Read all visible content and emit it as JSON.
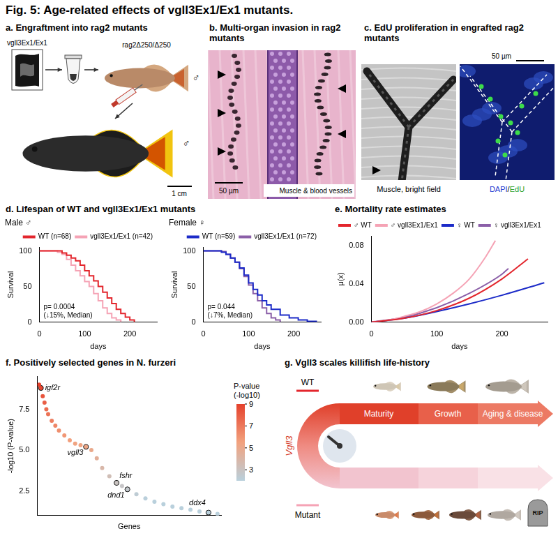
{
  "title": "Fig. 5: Age-related effects of vgll3Ex1/Ex1 mutants.",
  "panels": {
    "a": {
      "title": "a. Engraftment into rag2 mutants",
      "donor_label": "vgll3Ex1/Ex1",
      "host_label": "rag2Δ250/Δ250",
      "host_sex": "♂",
      "result_sex": "♂",
      "scale_bar": "1 cm"
    },
    "b": {
      "title": "b. Multi-organ invasion in rag2 mutants",
      "scale_bar": "50 µm",
      "caption": "Muscle & blood vessels"
    },
    "c": {
      "title": "c. EdU proliferation in engrafted rag2 mutants",
      "scale_bar": "50 µm",
      "captions": [
        "Muscle, bright field",
        "DAPI/EdU"
      ]
    },
    "d": {
      "title": "d. Lifespan of WT and vgll3Ex1/Ex1 mutants"
    },
    "e": {
      "title": "e. Mortality rate estimates"
    },
    "f": {
      "title": "f. Positively selected genes in N. furzeri"
    },
    "g": {
      "title": "g. Vgll3 scales killifish life-history",
      "top_label": "WT",
      "stages": [
        "Maturity",
        "Growth",
        "Aging & disease"
      ],
      "gene": "Vgll3",
      "bottom_label": "Mutant",
      "end_label": "RIP"
    }
  },
  "chart_data": [
    {
      "type": "line",
      "title": "Male ♂",
      "xlabel": "days",
      "ylabel": "Survival",
      "xlim": [
        0,
        260
      ],
      "xticks": [
        0,
        100,
        200
      ],
      "ylim": [
        0,
        105
      ],
      "yticks": [
        0,
        50,
        100
      ],
      "grid": false,
      "legend": "top",
      "line_style": "step",
      "annotation": [
        "p= 0.0004",
        "(↓15%, Median)"
      ],
      "series": [
        {
          "name": "WT (n=68)",
          "color": "#e3262d",
          "x": [
            0,
            40,
            50,
            60,
            70,
            80,
            90,
            100,
            110,
            120,
            130,
            140,
            150,
            160,
            170,
            180,
            190,
            200,
            210
          ],
          "values": [
            100,
            100,
            97,
            94,
            90,
            86,
            80,
            72,
            65,
            58,
            50,
            42,
            34,
            26,
            18,
            12,
            7,
            3,
            0
          ]
        },
        {
          "name": "vgll3Ex1/Ex1 (n=42)",
          "color": "#f5a3b5",
          "x": [
            0,
            40,
            50,
            60,
            70,
            80,
            90,
            100,
            110,
            120,
            130,
            140,
            150,
            160,
            170,
            180
          ],
          "values": [
            100,
            98,
            95,
            88,
            80,
            72,
            65,
            57,
            50,
            40,
            30,
            20,
            12,
            6,
            3,
            0
          ]
        }
      ]
    },
    {
      "type": "line",
      "title": "Female ♀",
      "xlabel": "days",
      "ylabel": "Survival",
      "xlim": [
        0,
        260
      ],
      "xticks": [
        0,
        100,
        200
      ],
      "ylim": [
        0,
        105
      ],
      "yticks": [
        0,
        50,
        100
      ],
      "grid": false,
      "legend": "top",
      "line_style": "step",
      "annotation": [
        "p= 0.044",
        "(↓7%, Median)"
      ],
      "series": [
        {
          "name": "WT (n=59)",
          "color": "#1c2bc8",
          "x": [
            0,
            40,
            50,
            60,
            70,
            80,
            90,
            100,
            110,
            120,
            130,
            140,
            150,
            170,
            190,
            210,
            230,
            250
          ],
          "values": [
            100,
            98,
            95,
            90,
            84,
            76,
            66,
            55,
            46,
            38,
            30,
            24,
            18,
            10,
            6,
            3,
            1,
            0
          ]
        },
        {
          "name": "vgll3Ex1/Ex1 (n=72)",
          "color": "#8b5fa8",
          "x": [
            0,
            40,
            50,
            60,
            70,
            80,
            90,
            100,
            110,
            120,
            130,
            140,
            150,
            160,
            170
          ],
          "values": [
            100,
            99,
            95,
            90,
            84,
            75,
            64,
            52,
            40,
            30,
            20,
            12,
            6,
            3,
            0
          ]
        }
      ]
    },
    {
      "type": "line",
      "xlabel": "days",
      "ylabel": "μ(x)",
      "xlim": [
        0,
        270
      ],
      "xticks": [
        0,
        100,
        200
      ],
      "ylim": [
        0,
        0.09
      ],
      "yticks": [
        {
          "value": 0,
          "label": "0.00"
        },
        0.04,
        0.08
      ],
      "grid": false,
      "legend": "top",
      "series": [
        {
          "name": "♂ WT",
          "color": "#e3262d",
          "x": [
            0,
            50,
            100,
            150,
            200,
            240
          ],
          "values": [
            0,
            0.004,
            0.012,
            0.025,
            0.045,
            0.066
          ]
        },
        {
          "name": "♂ vgll3Ex1/Ex1",
          "color": "#f5a3b5",
          "x": [
            0,
            25,
            50,
            75,
            100,
            125,
            150,
            175,
            190
          ],
          "values": [
            0,
            0.002,
            0.006,
            0.011,
            0.019,
            0.03,
            0.045,
            0.068,
            0.085
          ]
        },
        {
          "name": "♀ WT",
          "color": "#1c2bc8",
          "x": [
            0,
            50,
            100,
            150,
            200,
            265
          ],
          "values": [
            0,
            0.004,
            0.011,
            0.019,
            0.028,
            0.041
          ]
        },
        {
          "name": "♀ vgll3Ex1/Ex1",
          "color": "#8b5fa8",
          "x": [
            0,
            50,
            100,
            150,
            200,
            210
          ],
          "values": [
            0,
            0.005,
            0.015,
            0.03,
            0.05,
            0.056
          ]
        }
      ]
    },
    {
      "type": "scatter",
      "xlabel": "Genes",
      "ylabel": "-log10 (P-value)",
      "xlim": [
        0,
        102
      ],
      "ylim": [
        1,
        9.5
      ],
      "yticks": [
        2.5,
        {
          "value": 5,
          "label": "5.0"
        },
        7.5
      ],
      "tick_labels": "y",
      "grid": false,
      "x": [
        1,
        2,
        3,
        4,
        5,
        6,
        8,
        10,
        12,
        15,
        18,
        21,
        24,
        27,
        30,
        33,
        36,
        40,
        44,
        47,
        50,
        55,
        60,
        65,
        70,
        75,
        80,
        85,
        90,
        95,
        100
      ],
      "values": [
        9.0,
        8.8,
        8.3,
        7.9,
        7.5,
        7.2,
        6.8,
        6.5,
        6.2,
        5.9,
        5.6,
        5.4,
        5.3,
        5.2,
        5.0,
        4.5,
        3.9,
        3.4,
        3.0,
        2.8,
        2.6,
        2.3,
        2.05,
        1.85,
        1.7,
        1.55,
        1.45,
        1.35,
        1.25,
        1.18,
        1.1
      ],
      "highlighted": [
        {
          "label": "igf2r",
          "x": 2,
          "value": 8.8
        },
        {
          "label": "vgll3",
          "x": 27,
          "value": 5.2
        },
        {
          "label": "fshr",
          "x": 44,
          "value": 3.0
        },
        {
          "label": "dnd1",
          "x": 50,
          "value": 2.6
        },
        {
          "label": "ddx4",
          "x": 95,
          "value": 1.18
        }
      ],
      "colorbar": {
        "title": "P-value (-log10)",
        "range": [
          2,
          9
        ],
        "ticks": [
          9,
          7,
          5,
          3
        ],
        "colors": [
          "#b9d0dc",
          "#f2a27e",
          "#e5412c"
        ]
      }
    }
  ]
}
